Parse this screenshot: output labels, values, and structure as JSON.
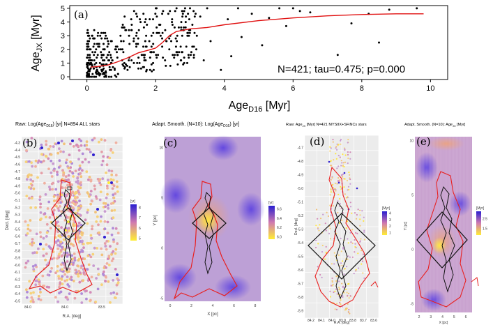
{
  "chart_data": [
    {
      "type": "scatter",
      "panel": "(a)",
      "xlabel_main": "Age",
      "xlabel_sub": "D16",
      "xlabel_unit": " [Myr]",
      "ylabel_main": "Age",
      "ylabel_sub": "JX",
      "ylabel_unit": " [Myr]",
      "xlim": [
        -0.5,
        10.5
      ],
      "ylim": [
        -0.2,
        5.2
      ],
      "xticks": [
        "0",
        "2",
        "4",
        "6",
        "8",
        "10"
      ],
      "yticks": [
        "0",
        "1",
        "2",
        "3",
        "4",
        "5"
      ],
      "annotation": "N=421; tau=0.475; p=0.000",
      "trend_x": [
        0.1,
        0.3,
        0.6,
        0.9,
        1.2,
        1.5,
        1.8,
        2.0,
        2.2,
        2.4,
        2.6,
        2.8,
        3.0,
        3.5,
        4.0,
        5.0,
        6.0,
        7.0,
        8.0,
        9.0,
        9.8
      ],
      "trend_y": [
        0.7,
        0.75,
        0.85,
        1.1,
        1.4,
        1.75,
        1.95,
        2.1,
        2.5,
        3.0,
        3.3,
        3.4,
        3.5,
        3.6,
        3.8,
        4.1,
        4.3,
        4.45,
        4.55,
        4.6,
        4.6
      ]
    },
    {
      "type": "heatmap",
      "panel": "(b)",
      "title_pre": "Raw: Log(Age",
      "title_sub": "D16",
      "title_post": ") [yr] N=894 ALL stars",
      "ylabel": "Decl. [deg]",
      "xlabel": "R.A. [deg]",
      "xticks": [
        "84.0",
        "84.0",
        "83.5"
      ],
      "yticks": [
        "-4.3",
        "-4.4",
        "-4.5",
        "-4.6",
        "-4.7",
        "-4.8",
        "-4.9",
        "-5.0",
        "-5.1",
        "-5.2",
        "-5.3",
        "-5.4",
        "-5.5",
        "-5.6",
        "-5.7",
        "-5.8",
        "-5.9",
        "-6.0",
        "-6.1",
        "-6.2",
        "-6.3",
        "-6.4",
        "-6.5"
      ],
      "legend_title": "[yr]",
      "legend_ticks": [
        "8",
        "7",
        "6",
        "5"
      ]
    },
    {
      "type": "heatmap",
      "panel": "(c)",
      "title_pre": "Adapt. Smooth. (N=10): Log(Age",
      "title_sub": "D16",
      "title_post": ") [yr]",
      "ylabel": "Y [pc]",
      "xlabel": "X [pc]",
      "xticks": [
        "0",
        "2",
        "4",
        "6",
        "8"
      ],
      "yticks": [
        "10",
        "5",
        "0",
        "-5"
      ],
      "legend_title": "[yr]",
      "legend_ticks": [
        "6.6",
        "6.4",
        "6.2",
        "6.0"
      ]
    },
    {
      "type": "heatmap",
      "panel": "(d)",
      "title_pre": "Raw: Age",
      "title_sub": "JX",
      "title_post": " [Myr] N=421 MYStIX+SFiNCs stars",
      "ylabel": "Decl. [deg]",
      "xlabel": "R.A. [deg]",
      "xticks": [
        "84.2",
        "84.1",
        "84.0",
        "83.9",
        "83.8",
        "83.7",
        "83.6"
      ],
      "yticks": [
        "-4.7",
        "-4.8",
        "-4.9",
        "-5.0",
        "-5.1",
        "-5.2",
        "-5.3",
        "-5.4",
        "-5.5",
        "-5.6",
        "-5.7",
        "-5.8",
        "-5.9"
      ],
      "legend_title": "[Myr]",
      "legend_ticks": [
        "4",
        "3",
        "2",
        "1"
      ]
    },
    {
      "type": "heatmap",
      "panel": "(e)",
      "title_pre": "Adapt. Smooth. (N=10): Age",
      "title_sub": "JX",
      "title_post": " [Myr]",
      "ylabel": "Y [pc]",
      "xlabel": "X [pc]",
      "xticks": [
        "2",
        "3",
        "4",
        "5",
        "6"
      ],
      "yticks": [
        "10",
        "5",
        "0",
        "-5"
      ],
      "legend_title": "[Myr]",
      "legend_ticks": [
        "2.5",
        "1.5"
      ]
    }
  ],
  "colors": {
    "trend_line": "#e01010",
    "contour_red": "#e82020",
    "contour_black": "#111111",
    "low": "#ffee33",
    "high": "#2a1fd0"
  }
}
